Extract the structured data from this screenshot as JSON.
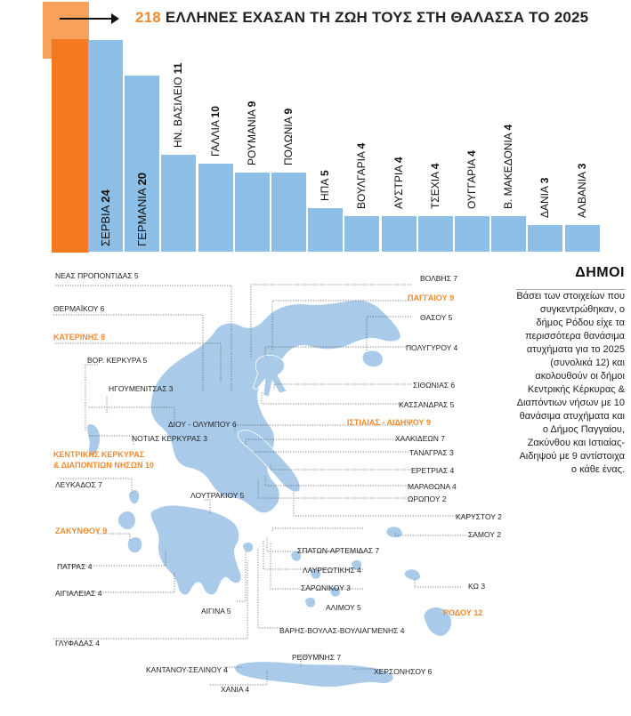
{
  "header": {
    "title_number": "218",
    "title_text": " ΕΛΛΗΝΕΣ ΕΧΑΣΑΝ ΤΗ ΖΩΗ ΤΟΥΣ ΣΤΗ ΘΑΛΑΣΣΑ ΤΟ 2025"
  },
  "chart_data": {
    "type": "bar",
    "title": "218 ΕΛΛΗΝΕΣ ΕΧΑΣΑΝ ΤΗ ΖΩΗ ΤΟΥΣ ΣΤΗ ΘΑΛΑΣΣΑ ΤΟ 2025",
    "categories": [
      "ΣΕΡΒΙΑ",
      "ΓΕΡΜΑΝΙΑ",
      "ΗΝ. ΒΑΣΙΛΕΙΟ",
      "ΓΑΛΛΙΑ",
      "ΡΟΥΜΑΝΙΑ",
      "ΠΟΛΩΝΙΑ",
      "ΗΠΑ",
      "ΒΟΥΛΓΑΡΙΑ",
      "ΑΥΣΤΡΙΑ",
      "ΤΣΕΧΙΑ",
      "ΟΥΓΓΑΡΙΑ",
      "Β. ΜΑΚΕΔΟΝΙΑ",
      "ΔΑΝΙΑ",
      "ΑΛΒΑΝΙΑ"
    ],
    "values": [
      24,
      20,
      11,
      10,
      9,
      9,
      5,
      4,
      4,
      4,
      4,
      4,
      3,
      3
    ],
    "bar_color": "#8dbfe6",
    "accent_color": "#f47a20"
  },
  "side": {
    "title": "ΔΗΜΟΙ",
    "text": "Βάσει των στοιχείων που συγκεντρώθηκαν, ο δήμος Ρόδου είχε τα περισσότερα θανάσιμα ατυχήματα για το 2025 (συνολικά 12) και ακολουθούν οι δήμοι Κεντρικής Κέρκυρας & Διαπόντιων νήσων με 10 θανάσιμα ατυχήματα και ο Δήμος Παγγαίου, Ζακύνθου και Ιστιαίας-Αιδηψού με 9 αντίστοιχα ο κάθε ένας."
  },
  "map": {
    "land_color": "#a9cbe9",
    "highlight_color": "#f28a2e",
    "labels": {
      "neas_propontidas": "ΝΕΑΣ ΠΡΟΠΟΝΤΙΔΑΣ 5",
      "thermaikou": "ΘΕΡΜΑΪΚΟΥ 6",
      "katerinis": "ΚΑΤΕΡΙΝΗΣ 8",
      "vor_kerkyras": "ΒΟΡ. ΚΕΡΚΥΡΑ 5",
      "igoumenitsas": "ΗΓΟΥΜΕΝΙΤΣΑΣ 3",
      "diou_olympou": "ΔΙΟΥ - ΟΛΥΜΠΟΥ 6",
      "notias_kerkyras": "ΝΟΤΙΑΣ ΚΕΡΚΥΡΑΣ 3",
      "kentrikis_kerkyras_1": "ΚΕΝΤΡΙΚΗΣ ΚΕΡΚΥΡΑΣ",
      "kentrikis_kerkyras_2": "& ΔΙΑΠΟΝΤΙΩΝ ΝΗΣΩΝ 10",
      "lefkados": "ΛΕΥΚΑΔΟΣ 7",
      "loutrakiou": "ΛΟΥΤΡΑΚΙΟΥ 5",
      "zakynthou": "ΖΑΚΥΝΘΟΥ 9",
      "patras": "ΠΑΤΡΑΣ 4",
      "aigialeias": "ΑΙΓΙΑΛΕΙΑΣ 4",
      "aigina": "ΑΙΓΙΝΑ 5",
      "glyfadas": "ΓΛΥΦΑΔΑΣ 4",
      "kantanou": "ΚΑΝΤΑΝΟΥ-ΣΕΛΙΝΟΥ 4",
      "chania": "ΧΑΝΙΑ 4",
      "volvis": "ΒΟΛΒΗΣ 7",
      "paggaiou": "ΠΑΓΓΑΙΟΥ 9",
      "thasou": "ΘΑΣΟΥ 5",
      "polygyrou": "ΠΟΛΥΓΥΡΟΥ 4",
      "sithonias": "ΣΙΘΩΝΙΑΣ 6",
      "kassandras": "ΚΑΣΣΑΝΔΡΑΣ 5",
      "istiaias": "ΙΣΤΙΑΙΑΣ - ΑΙΔΗΨΟΥ 9",
      "chalkideon": "ΧΑΛΚΙΔΕΩΝ 7",
      "tanagras": "ΤΑΝΑΓΡΑΣ 3",
      "eretrias": "ΕΡΕΤΡΙΑΣ 4",
      "marathona": "ΜΑΡΑΘΩΝΑ 4",
      "oropou": "ΩΡΩΠΟΥ 2",
      "karystou": "ΚΑΡΥΣΤΟΥ 2",
      "samou": "ΣΑΜΟΥ 2",
      "spaton": "ΣΠΑΤΩΝ-ΑΡΤΕΜΙΔΑΣ 7",
      "lavreotikis": "ΛΑΥΡΕΩΤΙΚΗΣ 4",
      "saronikou": "ΣΑΡΩΝΙΚΟΥ 3",
      "alimou": "ΑΛΙΜΟΥ 5",
      "kos": "ΚΩ 3",
      "rodou": "ΡΟΔΟΥ 12",
      "varis": "ΒΑΡΗΣ-ΒΟΥΛΑΣ-ΒΟΥΛΙΑΓΜΕΝΗΣ 4",
      "rethymnis": "ΡΕΘΥΜΝΗΣ 7",
      "chersonisou": "ΧΕΡΣΟΝΗΣΟΥ 6"
    }
  }
}
